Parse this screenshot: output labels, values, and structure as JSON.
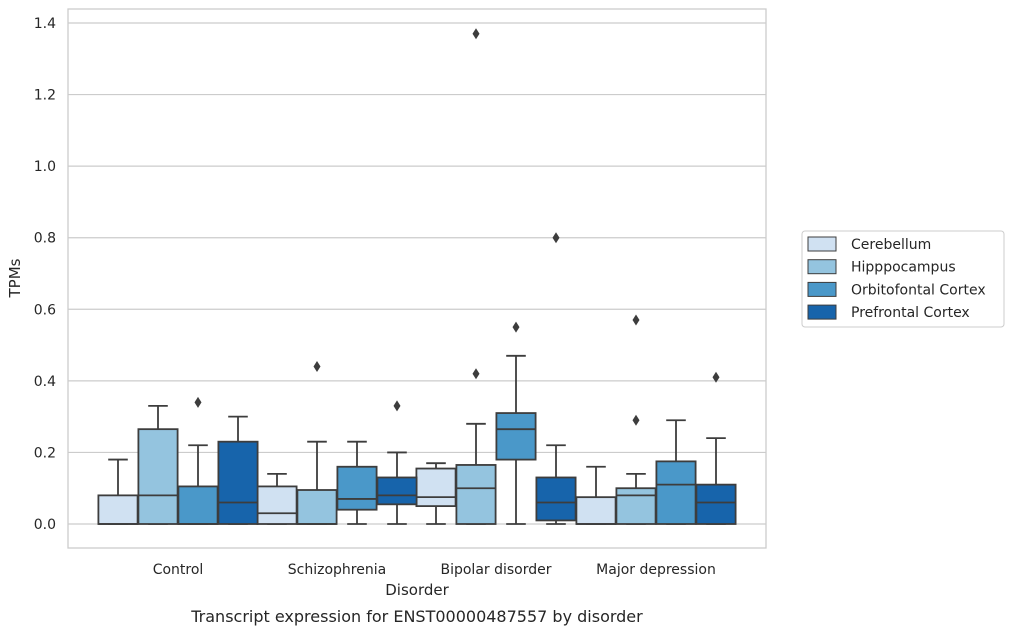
{
  "caption": "Transcript expression for ENST00000487557 by disorder",
  "chart_data": {
    "type": "boxplot",
    "xlabel": "Disorder",
    "ylabel": "TPMs",
    "ylim": [
      -0.065,
      1.44
    ],
    "yticks": [
      0.0,
      0.2,
      0.4,
      0.6,
      0.8,
      1.0,
      1.2,
      1.4
    ],
    "ytick_labels": [
      "0.0",
      "0.2",
      "0.4",
      "0.6",
      "0.8",
      "1.0",
      "1.2",
      "1.4"
    ],
    "grid": "horizontal",
    "legend_position": "right",
    "categories": [
      "Control",
      "Schizophrenia",
      "Bipolar disorder",
      "Major depression"
    ],
    "series": [
      {
        "name": "Cerebellum",
        "color": "#d0e1f2",
        "boxes": [
          {
            "whislo": 0.0,
            "q1": 0.0,
            "med": 0.0,
            "q3": 0.08,
            "whishi": 0.18,
            "fliers": []
          },
          {
            "whislo": 0.0,
            "q1": 0.0,
            "med": 0.03,
            "q3": 0.105,
            "whishi": 0.14,
            "fliers": []
          },
          {
            "whislo": 0.0,
            "q1": 0.05,
            "med": 0.075,
            "q3": 0.155,
            "whishi": 0.17,
            "fliers": []
          },
          {
            "whislo": 0.0,
            "q1": 0.0,
            "med": 0.0,
            "q3": 0.075,
            "whishi": 0.16,
            "fliers": []
          }
        ]
      },
      {
        "name": "Hipppocampus",
        "color": "#94c4df",
        "boxes": [
          {
            "whislo": 0.0,
            "q1": 0.0,
            "med": 0.08,
            "q3": 0.265,
            "whishi": 0.33,
            "fliers": []
          },
          {
            "whislo": 0.0,
            "q1": 0.0,
            "med": 0.0,
            "q3": 0.095,
            "whishi": 0.23,
            "fliers": [
              0.44
            ]
          },
          {
            "whislo": 0.0,
            "q1": 0.0,
            "med": 0.1,
            "q3": 0.165,
            "whishi": 0.28,
            "fliers": [
              0.42,
              1.37
            ]
          },
          {
            "whislo": 0.0,
            "q1": 0.0,
            "med": 0.08,
            "q3": 0.1,
            "whishi": 0.14,
            "fliers": [
              0.29,
              0.57
            ]
          }
        ]
      },
      {
        "name": "Orbitofontal Cortex",
        "color": "#4a98c9",
        "boxes": [
          {
            "whislo": 0.0,
            "q1": 0.0,
            "med": 0.0,
            "q3": 0.105,
            "whishi": 0.22,
            "fliers": [
              0.34
            ]
          },
          {
            "whislo": 0.0,
            "q1": 0.04,
            "med": 0.07,
            "q3": 0.16,
            "whishi": 0.23,
            "fliers": []
          },
          {
            "whislo": 0.0,
            "q1": 0.18,
            "med": 0.265,
            "q3": 0.31,
            "whishi": 0.47,
            "fliers": [
              0.55
            ]
          },
          {
            "whislo": 0.0,
            "q1": 0.0,
            "med": 0.11,
            "q3": 0.175,
            "whishi": 0.29,
            "fliers": []
          }
        ]
      },
      {
        "name": "Prefrontal Cortex",
        "color": "#1764ab",
        "boxes": [
          {
            "whislo": 0.0,
            "q1": 0.0,
            "med": 0.06,
            "q3": 0.23,
            "whishi": 0.3,
            "fliers": []
          },
          {
            "whislo": 0.0,
            "q1": 0.055,
            "med": 0.08,
            "q3": 0.13,
            "whishi": 0.2,
            "fliers": [
              0.33
            ]
          },
          {
            "whislo": 0.0,
            "q1": 0.01,
            "med": 0.06,
            "q3": 0.13,
            "whishi": 0.22,
            "fliers": [
              0.8
            ]
          },
          {
            "whislo": 0.0,
            "q1": 0.0,
            "med": 0.06,
            "q3": 0.11,
            "whishi": 0.24,
            "fliers": [
              0.41
            ]
          }
        ]
      }
    ]
  }
}
